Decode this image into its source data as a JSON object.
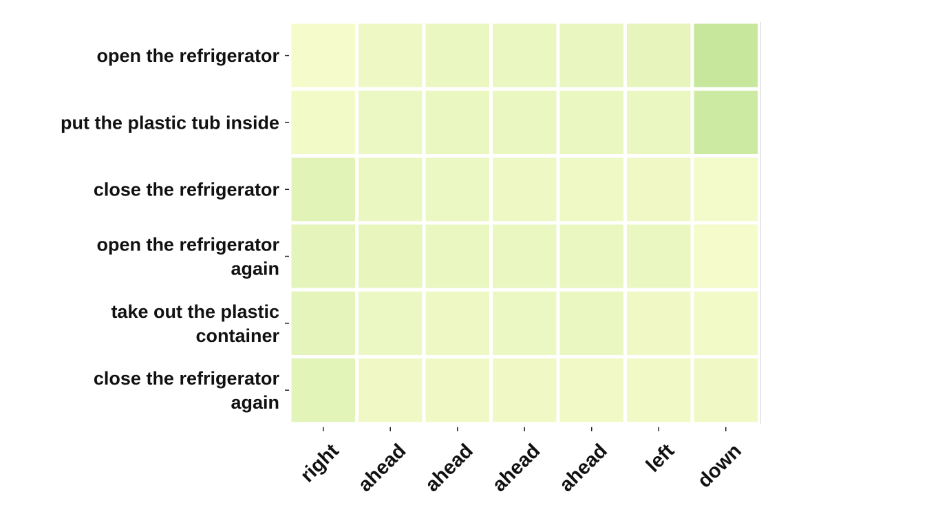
{
  "chart_data": {
    "type": "heatmap",
    "rows": [
      [
        "open the refrigerator"
      ],
      [
        "put the plastic tub inside"
      ],
      [
        "close the refrigerator"
      ],
      [
        "open the refrigerator",
        "again"
      ],
      [
        "take out the plastic",
        "container"
      ],
      [
        "close the refrigerator",
        "again"
      ]
    ],
    "columns": [
      "right",
      "ahead",
      "ahead",
      "ahead",
      "ahead",
      "left",
      "down"
    ],
    "values": [
      [
        0.02,
        0.08,
        0.1,
        0.11,
        0.12,
        0.14,
        0.42
      ],
      [
        0.04,
        0.09,
        0.11,
        0.11,
        0.11,
        0.1,
        0.36
      ],
      [
        0.18,
        0.1,
        0.09,
        0.08,
        0.07,
        0.06,
        0.03
      ],
      [
        0.16,
        0.13,
        0.11,
        0.11,
        0.11,
        0.1,
        0.02
      ],
      [
        0.16,
        0.09,
        0.08,
        0.09,
        0.1,
        0.06,
        0.04
      ],
      [
        0.17,
        0.06,
        0.06,
        0.06,
        0.05,
        0.05,
        0.06
      ]
    ],
    "colorscale": [
      "#f7fccd",
      "#c2e699"
    ],
    "value_range": [
      0.0,
      0.45
    ],
    "grid": false,
    "legend": "none"
  }
}
